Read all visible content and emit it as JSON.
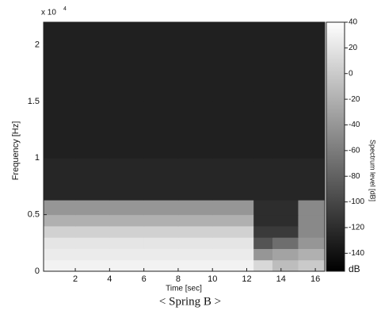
{
  "chart_data": {
    "type": "heatmap",
    "x_label": "Time [sec]",
    "y_label": "Frequency [Hz]",
    "y_multiplier": "x 10",
    "y_multiplier_exp": "4",
    "caption": "< Spring B >",
    "colorbar_label": "Spectrum level [dB]",
    "colorbar_unit": "dB",
    "x_edges": [
      0.15,
      2,
      4,
      6,
      8,
      10,
      12.4,
      13.5,
      15,
      16.55
    ],
    "y_edges": [
      0,
      0.1,
      0.2,
      0.3,
      0.4,
      0.5,
      0.63,
      1.0,
      1.5,
      2.2
    ],
    "z": [
      [
        30,
        30,
        30,
        30,
        30,
        30,
        10,
        -10,
        0
      ],
      [
        25,
        25,
        25,
        25,
        25,
        25,
        -40,
        -30,
        -20
      ],
      [
        20,
        20,
        20,
        20,
        20,
        20,
        -90,
        -70,
        -40
      ],
      [
        5,
        5,
        5,
        5,
        5,
        5,
        -110,
        -110,
        -50
      ],
      [
        -20,
        -20,
        -20,
        -20,
        -20,
        -20,
        -120,
        -120,
        -50
      ],
      [
        -40,
        -40,
        -40,
        -40,
        -40,
        -40,
        -120,
        -120,
        -50
      ],
      [
        -125,
        -125,
        -125,
        -125,
        -125,
        -125,
        -125,
        -125,
        -125
      ],
      [
        -130,
        -130,
        -130,
        -130,
        -130,
        -130,
        -130,
        -130,
        -130
      ],
      [
        -130,
        -130,
        -130,
        -130,
        -130,
        -130,
        -130,
        -130,
        -130
      ]
    ],
    "xlim": [
      0.15,
      16.55
    ],
    "ylim": [
      0,
      2.2
    ],
    "xticks": [
      2,
      4,
      6,
      8,
      10,
      12,
      14,
      16
    ],
    "yticks": [
      0,
      0.5,
      1,
      1.5,
      2
    ],
    "clim": [
      -154,
      40
    ],
    "cticks": [
      40,
      20,
      0,
      -20,
      -40,
      -60,
      -80,
      -100,
      -120,
      -140
    ],
    "colormap": "gray"
  }
}
